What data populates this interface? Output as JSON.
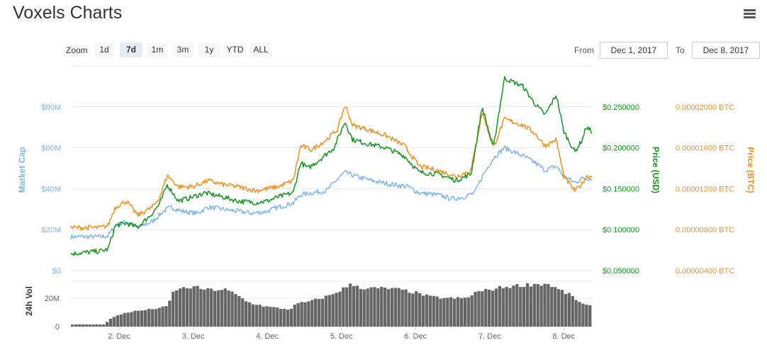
{
  "header": {
    "title": "Voxels Charts"
  },
  "colors": {
    "market_cap": "#7cb5ec",
    "usd": "#109618",
    "btc": "#f28f18",
    "volume": "#666666",
    "grid": "#e6e6e6"
  },
  "zoom": {
    "label": "Zoom",
    "buttons": [
      "1d",
      "7d",
      "1m",
      "3m",
      "1y",
      "YTD",
      "ALL"
    ],
    "active": "7d"
  },
  "range": {
    "from_label": "From",
    "from_value": "Dec 1, 2017",
    "to_label": "To",
    "to_value": "Dec 8, 2017"
  },
  "chart_data": {
    "type": "line",
    "x_ticks": [
      "2. Dec",
      "3. Dec",
      "4. Dec",
      "5. Dec",
      "6. Dec",
      "7. Dec",
      "8. Dec"
    ],
    "x_range_days": [
      1.35,
      8.38
    ],
    "axes": {
      "market_cap": {
        "label": "Market Cap",
        "ticks": [
          "$0",
          "$20M",
          "$40M",
          "$60M",
          "$80M"
        ],
        "range": [
          0,
          100000000
        ]
      },
      "usd": {
        "label": "Price (USD)",
        "ticks": [
          "$0.050000",
          "$0.100000",
          "$0.150000",
          "$0.200000",
          "$0.250000"
        ],
        "range": [
          0.05,
          0.3
        ]
      },
      "btc": {
        "label": "Price (BTC)",
        "ticks": [
          "0.00000400 BTC",
          "0.00000800 BTC",
          "0.00001200 BTC",
          "0.00001600 BTC",
          "0.00002000 BTC"
        ],
        "range": [
          4e-06,
          2.4e-05
        ]
      },
      "volume": {
        "label": "24h Vol",
        "ticks": [
          "0",
          "20M"
        ],
        "range": [
          0,
          32000000
        ]
      }
    },
    "series": [
      {
        "name": "Market Cap",
        "axis": "market_cap",
        "points": [
          [
            1.35,
            16.5
          ],
          [
            1.75,
            16.5
          ],
          [
            1.85,
            17
          ],
          [
            1.95,
            22
          ],
          [
            2.1,
            24
          ],
          [
            2.25,
            21
          ],
          [
            2.45,
            24
          ],
          [
            2.6,
            29
          ],
          [
            2.7,
            31
          ],
          [
            2.85,
            29
          ],
          [
            3.05,
            28
          ],
          [
            3.2,
            31
          ],
          [
            3.4,
            30
          ],
          [
            3.6,
            29
          ],
          [
            3.8,
            28
          ],
          [
            4.0,
            29
          ],
          [
            4.15,
            31
          ],
          [
            4.35,
            33
          ],
          [
            4.45,
            37
          ],
          [
            4.6,
            38
          ],
          [
            4.8,
            39
          ],
          [
            4.9,
            43
          ],
          [
            5.05,
            48
          ],
          [
            5.2,
            46
          ],
          [
            5.4,
            44
          ],
          [
            5.7,
            42
          ],
          [
            5.9,
            41
          ],
          [
            6.05,
            38
          ],
          [
            6.3,
            37
          ],
          [
            6.5,
            35
          ],
          [
            6.65,
            36
          ],
          [
            6.8,
            38
          ],
          [
            6.9,
            46
          ],
          [
            7.05,
            55
          ],
          [
            7.2,
            60
          ],
          [
            7.45,
            56
          ],
          [
            7.6,
            53
          ],
          [
            7.75,
            49
          ],
          [
            7.9,
            51
          ],
          [
            8.0,
            46
          ],
          [
            8.15,
            43
          ],
          [
            8.25,
            45
          ],
          [
            8.35,
            45
          ]
        ]
      },
      {
        "name": "Price (USD)",
        "axis": "usd",
        "points": [
          [
            1.35,
            0.0705
          ],
          [
            1.75,
            0.074
          ],
          [
            1.85,
            0.076
          ],
          [
            1.95,
            0.105
          ],
          [
            2.1,
            0.108
          ],
          [
            2.25,
            0.103
          ],
          [
            2.45,
            0.12
          ],
          [
            2.55,
            0.132
          ],
          [
            2.65,
            0.155
          ],
          [
            2.8,
            0.135
          ],
          [
            3.0,
            0.14
          ],
          [
            3.15,
            0.145
          ],
          [
            3.4,
            0.14
          ],
          [
            3.6,
            0.135
          ],
          [
            3.85,
            0.133
          ],
          [
            4.0,
            0.135
          ],
          [
            4.15,
            0.14
          ],
          [
            4.35,
            0.145
          ],
          [
            4.45,
            0.182
          ],
          [
            4.55,
            0.175
          ],
          [
            4.7,
            0.185
          ],
          [
            4.9,
            0.2
          ],
          [
            5.05,
            0.232
          ],
          [
            5.15,
            0.21
          ],
          [
            5.35,
            0.205
          ],
          [
            5.6,
            0.2
          ],
          [
            5.85,
            0.19
          ],
          [
            6.05,
            0.17
          ],
          [
            6.3,
            0.168
          ],
          [
            6.55,
            0.16
          ],
          [
            6.75,
            0.168
          ],
          [
            6.9,
            0.25
          ],
          [
            7.05,
            0.2
          ],
          [
            7.2,
            0.285
          ],
          [
            7.45,
            0.275
          ],
          [
            7.6,
            0.255
          ],
          [
            7.75,
            0.24
          ],
          [
            7.9,
            0.265
          ],
          [
            8.0,
            0.22
          ],
          [
            8.15,
            0.195
          ],
          [
            8.25,
            0.21
          ],
          [
            8.3,
            0.225
          ],
          [
            8.38,
            0.22
          ]
        ]
      },
      {
        "name": "Price (BTC)",
        "axis": "btc",
        "points": [
          [
            1.35,
            8.2e-06
          ],
          [
            1.75,
            8.2e-06
          ],
          [
            1.85,
            8.4e-06
          ],
          [
            1.95,
            1.02e-05
          ],
          [
            2.1,
            1.08e-05
          ],
          [
            2.25,
            9.4e-06
          ],
          [
            2.45,
            1.02e-05
          ],
          [
            2.55,
            1.12e-05
          ],
          [
            2.65,
            1.33e-05
          ],
          [
            2.8,
            1.22e-05
          ],
          [
            3.0,
            1.22e-05
          ],
          [
            3.2,
            1.28e-05
          ],
          [
            3.4,
            1.24e-05
          ],
          [
            3.6,
            1.22e-05
          ],
          [
            3.85,
            1.18e-05
          ],
          [
            4.0,
            1.2e-05
          ],
          [
            4.15,
            1.22e-05
          ],
          [
            4.35,
            1.28e-05
          ],
          [
            4.45,
            1.62e-05
          ],
          [
            4.6,
            1.58e-05
          ],
          [
            4.8,
            1.68e-05
          ],
          [
            4.95,
            1.78e-05
          ],
          [
            5.05,
            2.02e-05
          ],
          [
            5.15,
            1.82e-05
          ],
          [
            5.35,
            1.78e-05
          ],
          [
            5.6,
            1.72e-05
          ],
          [
            5.85,
            1.62e-05
          ],
          [
            6.05,
            1.42e-05
          ],
          [
            6.3,
            1.38e-05
          ],
          [
            6.55,
            1.32e-05
          ],
          [
            6.75,
            1.38e-05
          ],
          [
            6.9,
            1.95e-05
          ],
          [
            7.05,
            1.6e-05
          ],
          [
            7.2,
            1.88e-05
          ],
          [
            7.45,
            1.82e-05
          ],
          [
            7.6,
            1.75e-05
          ],
          [
            7.75,
            1.62e-05
          ],
          [
            7.9,
            1.68e-05
          ],
          [
            8.0,
            1.32e-05
          ],
          [
            8.15,
            1.18e-05
          ],
          [
            8.25,
            1.25e-05
          ],
          [
            8.3,
            1.32e-05
          ],
          [
            8.38,
            1.32e-05
          ]
        ]
      },
      {
        "name": "24h Vol",
        "axis": "volume",
        "points": [
          [
            1.35,
            1.5
          ],
          [
            1.8,
            1.5
          ],
          [
            1.9,
            6
          ],
          [
            2.1,
            10
          ],
          [
            2.4,
            12
          ],
          [
            2.65,
            14
          ],
          [
            2.75,
            26
          ],
          [
            3.0,
            28
          ],
          [
            3.2,
            26
          ],
          [
            3.45,
            26
          ],
          [
            3.6,
            22
          ],
          [
            3.75,
            17
          ],
          [
            4.0,
            14
          ],
          [
            4.3,
            12
          ],
          [
            4.4,
            16
          ],
          [
            4.6,
            18
          ],
          [
            4.85,
            22
          ],
          [
            5.0,
            26
          ],
          [
            5.15,
            30
          ],
          [
            5.3,
            27
          ],
          [
            5.6,
            27
          ],
          [
            5.8,
            26
          ],
          [
            6.0,
            24
          ],
          [
            6.2,
            21
          ],
          [
            6.45,
            20
          ],
          [
            6.7,
            20
          ],
          [
            6.8,
            24
          ],
          [
            7.0,
            26
          ],
          [
            7.2,
            28
          ],
          [
            7.6,
            30
          ],
          [
            7.8,
            30
          ],
          [
            7.9,
            27
          ],
          [
            8.1,
            22
          ],
          [
            8.25,
            16
          ],
          [
            8.38,
            14
          ]
        ]
      }
    ]
  }
}
